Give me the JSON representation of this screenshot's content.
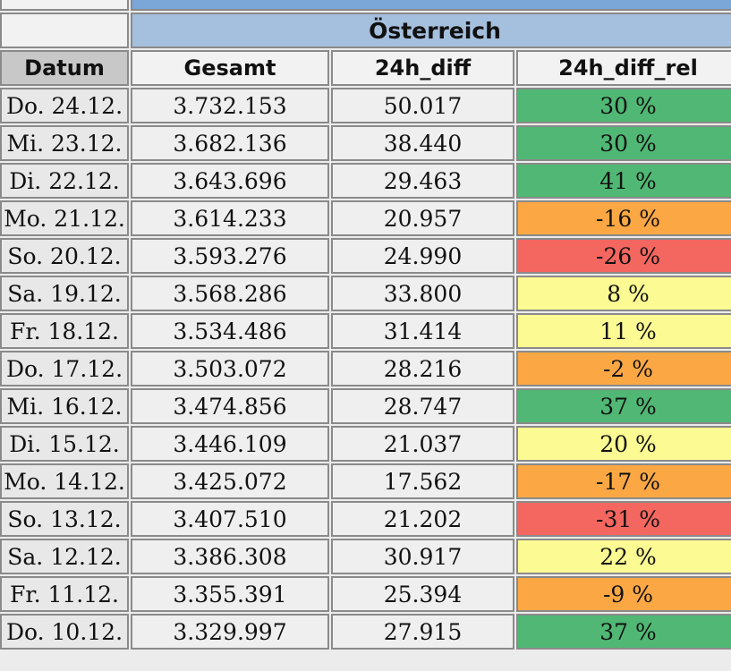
{
  "table": {
    "country": "Österreich",
    "headers": {
      "datum": "Datum",
      "gesamt": "Gesamt",
      "diff": "24h_diff",
      "diff_rel": "24h_diff_rel"
    },
    "colors": {
      "green": "#50b874",
      "orange": "#fba744",
      "red": "#f46660",
      "yellow": "#fcfa93",
      "header_blue": "#a5bfde"
    },
    "rows": [
      {
        "datum": "Do. 24.12.",
        "gesamt": "3.732.153",
        "diff": "50.017",
        "diff_rel": "30 %",
        "status": "green"
      },
      {
        "datum": "Mi. 23.12.",
        "gesamt": "3.682.136",
        "diff": "38.440",
        "diff_rel": "30 %",
        "status": "green"
      },
      {
        "datum": "Di. 22.12.",
        "gesamt": "3.643.696",
        "diff": "29.463",
        "diff_rel": "41 %",
        "status": "green"
      },
      {
        "datum": "Mo. 21.12.",
        "gesamt": "3.614.233",
        "diff": "20.957",
        "diff_rel": "-16 %",
        "status": "orange"
      },
      {
        "datum": "So. 20.12.",
        "gesamt": "3.593.276",
        "diff": "24.990",
        "diff_rel": "-26 %",
        "status": "red"
      },
      {
        "datum": "Sa. 19.12.",
        "gesamt": "3.568.286",
        "diff": "33.800",
        "diff_rel": "8 %",
        "status": "yellow"
      },
      {
        "datum": "Fr. 18.12.",
        "gesamt": "3.534.486",
        "diff": "31.414",
        "diff_rel": "11 %",
        "status": "yellow"
      },
      {
        "datum": "Do. 17.12.",
        "gesamt": "3.503.072",
        "diff": "28.216",
        "diff_rel": "-2 %",
        "status": "orange"
      },
      {
        "datum": "Mi. 16.12.",
        "gesamt": "3.474.856",
        "diff": "28.747",
        "diff_rel": "37 %",
        "status": "green"
      },
      {
        "datum": "Di. 15.12.",
        "gesamt": "3.446.109",
        "diff": "21.037",
        "diff_rel": "20 %",
        "status": "yellow"
      },
      {
        "datum": "Mo. 14.12.",
        "gesamt": "3.425.072",
        "diff": "17.562",
        "diff_rel": "-17 %",
        "status": "orange"
      },
      {
        "datum": "So. 13.12.",
        "gesamt": "3.407.510",
        "diff": "21.202",
        "diff_rel": "-31 %",
        "status": "red"
      },
      {
        "datum": "Sa. 12.12.",
        "gesamt": "3.386.308",
        "diff": "30.917",
        "diff_rel": "22 %",
        "status": "yellow"
      },
      {
        "datum": "Fr. 11.12.",
        "gesamt": "3.355.391",
        "diff": "25.394",
        "diff_rel": "-9 %",
        "status": "orange"
      },
      {
        "datum": "Do. 10.12.",
        "gesamt": "3.329.997",
        "diff": "27.915",
        "diff_rel": "37 %",
        "status": "green"
      }
    ]
  }
}
